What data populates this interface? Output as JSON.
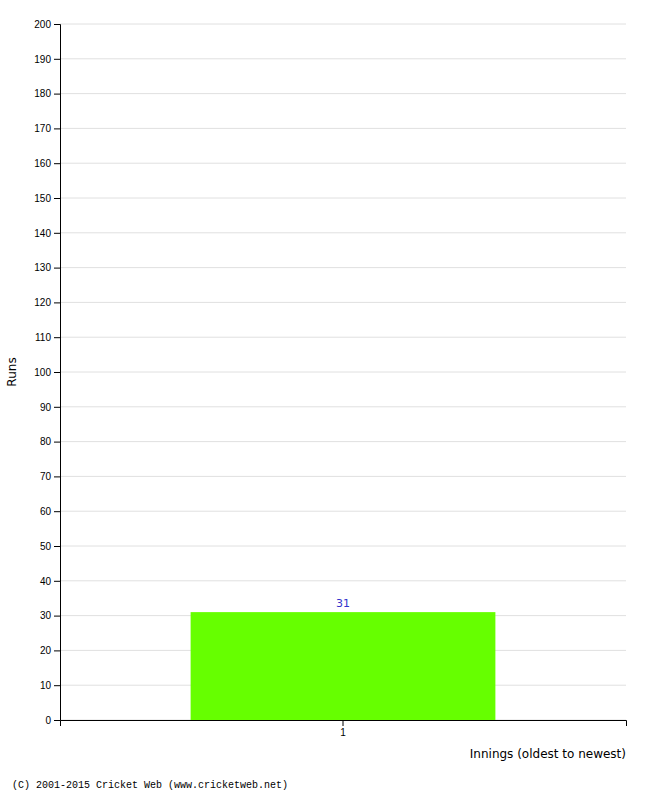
{
  "chart_data": {
    "type": "bar",
    "categories": [
      "1"
    ],
    "values": [
      31
    ],
    "color": "#66ff00",
    "xlabel": "Innings (oldest to newest)",
    "ylabel": "Runs",
    "ylim": [
      0,
      200
    ],
    "yticks": [
      0,
      10,
      20,
      30,
      40,
      50,
      60,
      70,
      80,
      90,
      100,
      110,
      120,
      130,
      140,
      150,
      160,
      170,
      180,
      190,
      200
    ],
    "grid": true,
    "data_labels": true,
    "footnote": "(C) 2001-2015 Cricket Web (www.cricketweb.net)"
  }
}
